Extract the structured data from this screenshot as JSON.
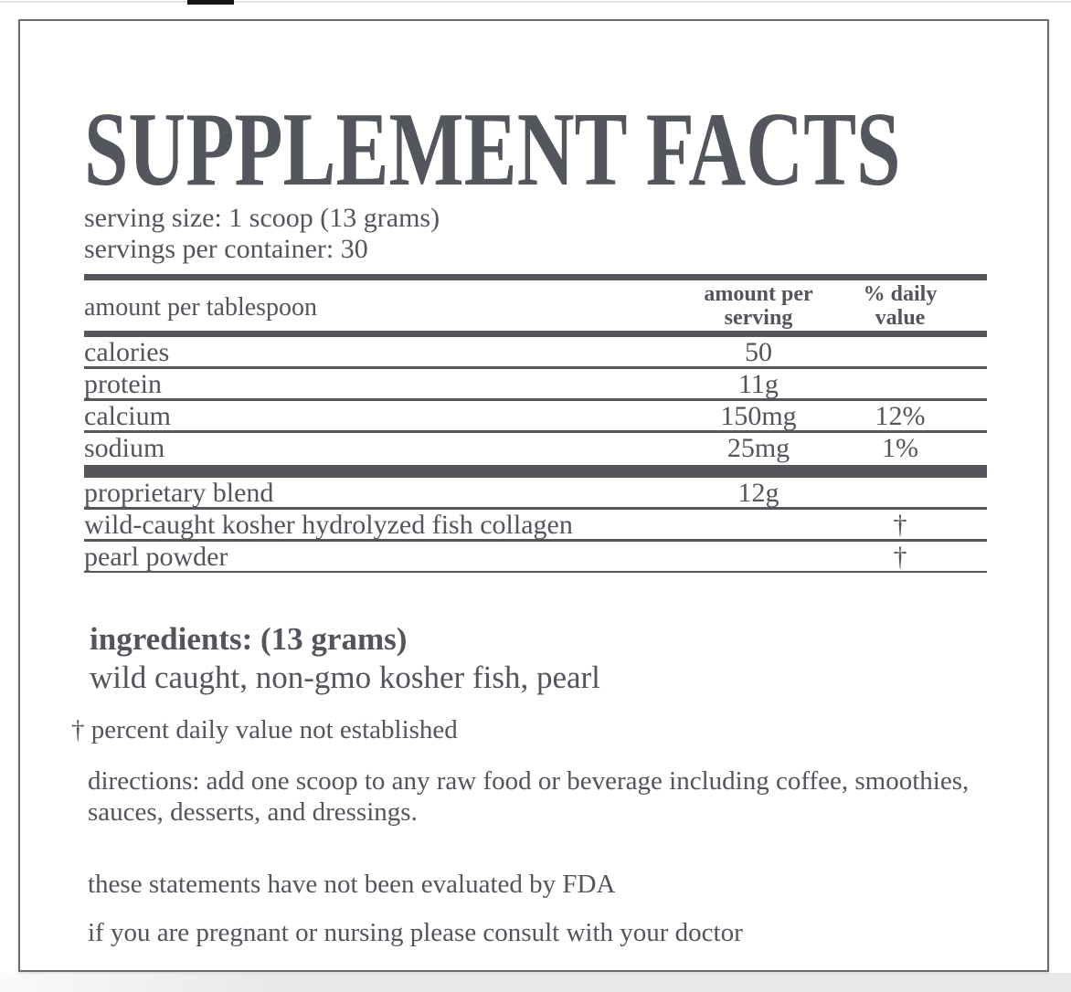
{
  "chrome": {
    "tab_bar_color": "#141414"
  },
  "label": {
    "title": "SUPPLEMENT FACTS",
    "serving_size": "serving size: 1 scoop (13 grams)",
    "servings_per_container": "servings per container: 30",
    "table": {
      "header": {
        "col1": "amount per tablespoon",
        "col2_line1": "amount per",
        "col2_line2": "serving",
        "col3_line1": "% daily",
        "col3_line2": "value"
      },
      "rows": [
        {
          "name": "calories",
          "amount": "50",
          "daily_value": ""
        },
        {
          "name": "protein",
          "amount": "11g",
          "daily_value": ""
        },
        {
          "name": "calcium",
          "amount": "150mg",
          "daily_value": "12%"
        },
        {
          "name": "sodium",
          "amount": "25mg",
          "daily_value": "1%"
        }
      ],
      "blend_rows": [
        {
          "name": "proprietary blend",
          "amount": "12g",
          "daily_value": ""
        },
        {
          "name": "wild-caught kosher hydrolyzed fish collagen",
          "amount": "",
          "daily_value": "†"
        },
        {
          "name": "pearl powder",
          "amount": "",
          "daily_value": "†"
        }
      ]
    },
    "ingredients": {
      "heading_bold": "ingredients:",
      "heading_rest": " (13 grams)",
      "list": "wild caught, non-gmo kosher fish, pearl"
    },
    "footnote": "† percent daily value not established",
    "directions": "directions: add one scoop to any raw food or beverage including coffee, smoothies, sauces, desserts, and dressings.",
    "fda_disclaimer": "these statements have not been evaluated by FDA",
    "pregnancy_warning": "if you are pregnant or nursing please consult with your doctor"
  },
  "colors": {
    "text": "#53555c",
    "rule": "#55565b",
    "box_border": "#6b6b6b"
  }
}
